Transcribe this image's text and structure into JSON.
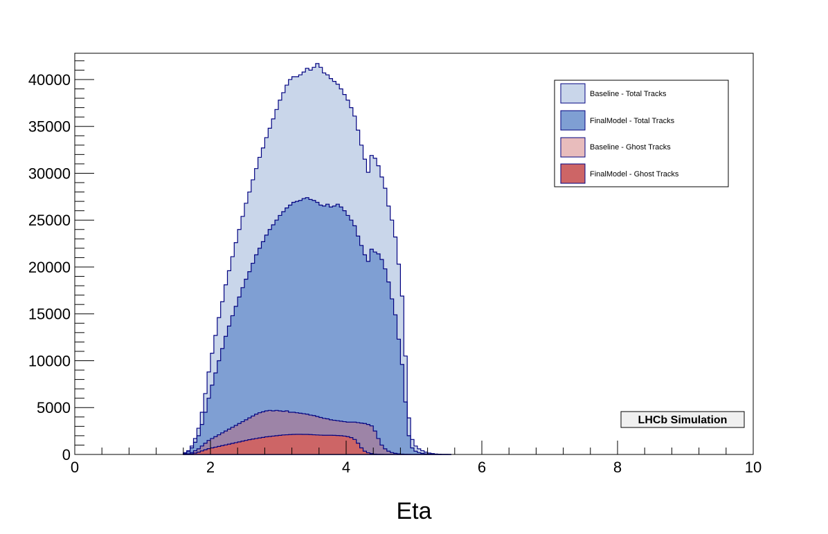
{
  "chart_data": {
    "type": "area",
    "histogram": true,
    "xlabel": "Eta",
    "ylabel": "",
    "xlim": [
      0,
      10
    ],
    "ylim": [
      0,
      42800
    ],
    "xticks": [
      "0",
      "2",
      "4",
      "6",
      "8",
      "10"
    ],
    "yticks": [
      "0",
      "5000",
      "10000",
      "15000",
      "20000",
      "25000",
      "30000",
      "35000",
      "40000"
    ],
    "bin_width": 0.05,
    "x": [
      1.6,
      1.65,
      1.7,
      1.75,
      1.8,
      1.85,
      1.9,
      1.95,
      2.0,
      2.05,
      2.1,
      2.15,
      2.2,
      2.25,
      2.3,
      2.35,
      2.4,
      2.45,
      2.5,
      2.55,
      2.6,
      2.65,
      2.7,
      2.75,
      2.8,
      2.85,
      2.9,
      2.95,
      3.0,
      3.05,
      3.1,
      3.15,
      3.2,
      3.25,
      3.3,
      3.35,
      3.4,
      3.45,
      3.5,
      3.55,
      3.6,
      3.65,
      3.7,
      3.75,
      3.8,
      3.85,
      3.9,
      3.95,
      4.0,
      4.05,
      4.1,
      4.15,
      4.2,
      4.25,
      4.3,
      4.35,
      4.4,
      4.45,
      4.5,
      4.55,
      4.6,
      4.65,
      4.7,
      4.75,
      4.8,
      4.85,
      4.9,
      4.95,
      5.0,
      5.05,
      5.1,
      5.15,
      5.2,
      5.25,
      5.3,
      5.35,
      5.4,
      5.45,
      5.5
    ],
    "series": [
      {
        "name": "Baseline - Total Tracks",
        "color": "#c9d6ea",
        "values": [
          200,
          400,
          900,
          1700,
          2800,
          4500,
          6500,
          8800,
          10800,
          12700,
          14600,
          16300,
          18100,
          19600,
          21100,
          22600,
          24000,
          25400,
          26800,
          28000,
          29300,
          30500,
          31700,
          32700,
          33800,
          34800,
          35800,
          36800,
          37800,
          38600,
          39400,
          40000,
          40300,
          40300,
          40500,
          40800,
          41200,
          41000,
          41300,
          41700,
          41300,
          40700,
          40500,
          40100,
          39800,
          39500,
          39000,
          38400,
          37800,
          37000,
          36100,
          34600,
          33000,
          31500,
          30100,
          31900,
          31600,
          30800,
          29600,
          28400,
          26500,
          25000,
          23200,
          20300,
          16900,
          10500,
          3900,
          1600,
          900,
          600,
          400,
          250,
          150,
          90,
          50,
          30,
          15,
          8,
          0
        ],
        "show_legend": true
      },
      {
        "name": "FinalModel - Total Tracks",
        "color": "#7f9fd3",
        "values": [
          100,
          300,
          700,
          1300,
          2000,
          3200,
          4500,
          6000,
          7400,
          8700,
          10000,
          11300,
          12600,
          13700,
          14800,
          15800,
          16800,
          17800,
          18700,
          19500,
          20400,
          21300,
          22000,
          22700,
          23400,
          24000,
          24500,
          25000,
          25500,
          25900,
          26300,
          26600,
          26900,
          27000,
          27100,
          27300,
          27400,
          27200,
          27100,
          26900,
          26600,
          26500,
          26700,
          26400,
          26500,
          26700,
          26400,
          26000,
          25500,
          25000,
          24400,
          23300,
          22300,
          21300,
          20600,
          21900,
          21600,
          21400,
          20800,
          19800,
          18400,
          16600,
          14900,
          12300,
          9600,
          5600,
          2000,
          700,
          350,
          200,
          120,
          70,
          40,
          20,
          10,
          5,
          0,
          0,
          0
        ],
        "show_legend": true
      },
      {
        "name": "Baseline - Ghost Tracks",
        "color": "#a27f9f",
        "values": [
          30,
          80,
          200,
          400,
          600,
          900,
          1200,
          1500,
          1700,
          1900,
          2100,
          2300,
          2500,
          2700,
          2900,
          3100,
          3300,
          3500,
          3700,
          3900,
          4100,
          4300,
          4450,
          4550,
          4650,
          4700,
          4650,
          4700,
          4650,
          4600,
          4650,
          4500,
          4500,
          4450,
          4400,
          4350,
          4300,
          4200,
          4150,
          4050,
          3950,
          3850,
          3800,
          3700,
          3650,
          3600,
          3550,
          3500,
          3450,
          3450,
          3450,
          3400,
          3350,
          3300,
          3200,
          3050,
          2500,
          1700,
          1000,
          600,
          350,
          200,
          120,
          70,
          40,
          20,
          10,
          5,
          0,
          0,
          0,
          0,
          0,
          0,
          0,
          0,
          0,
          0,
          0
        ],
        "show_legend": true
      },
      {
        "name": "FinalModel - Ghost Tracks",
        "color": "#cd6566",
        "values": [
          10,
          30,
          80,
          150,
          250,
          380,
          500,
          620,
          700,
          780,
          860,
          940,
          1020,
          1100,
          1180,
          1260,
          1340,
          1420,
          1500,
          1580,
          1640,
          1700,
          1760,
          1820,
          1880,
          1920,
          1960,
          2000,
          2040,
          2080,
          2100,
          2120,
          2140,
          2150,
          2150,
          2140,
          2140,
          2120,
          2100,
          2080,
          2060,
          2050,
          2050,
          2050,
          2040,
          2020,
          2000,
          1960,
          1900,
          1800,
          1600,
          1200,
          700,
          350,
          180,
          90,
          40,
          20,
          10,
          5,
          0,
          0,
          0,
          0,
          0,
          0,
          0,
          0,
          0,
          0,
          0,
          0,
          0,
          0,
          0,
          0,
          0,
          0,
          0
        ],
        "show_legend": true
      }
    ],
    "annotation": "LHCb Simulation",
    "legend_position": "top-right"
  }
}
